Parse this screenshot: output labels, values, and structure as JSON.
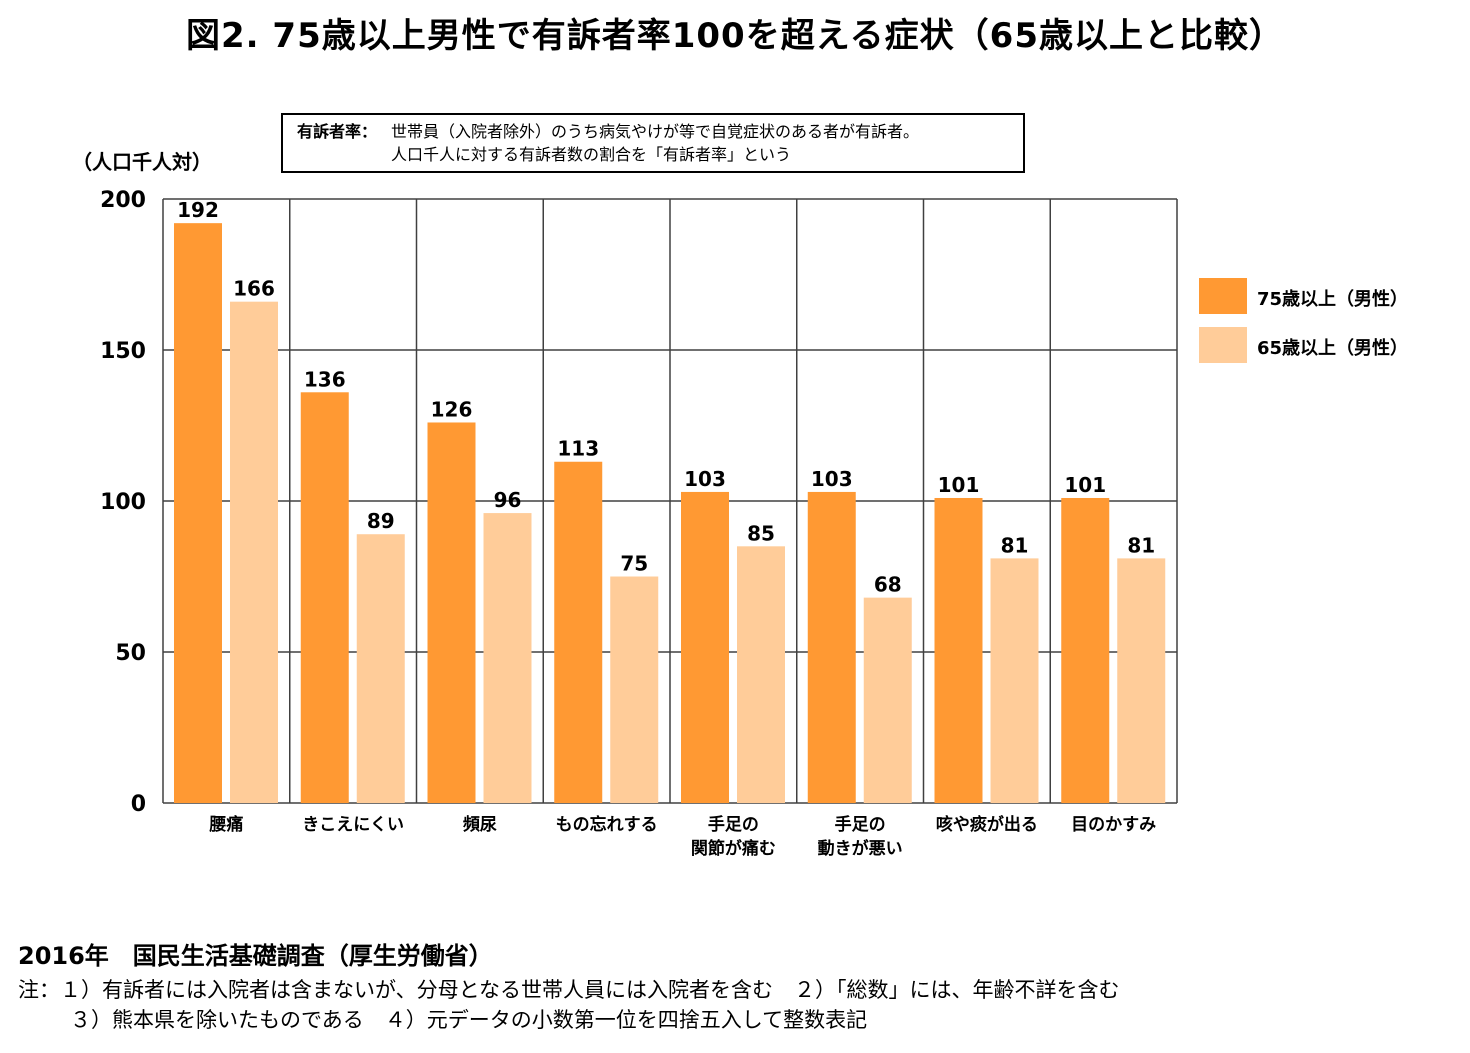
{
  "title": "図2. 75歳以上男性で有訴者率100を超える症状（65歳以上と比較）",
  "definition": {
    "label": "有訴者率：",
    "line1": "世帯員（入院者除外）のうち病気やけが等で自覚症状のある者が有訴者。",
    "line2": "人口千人に対する有訴者数の割合を「有訴者率」という"
  },
  "unit_label": "（人口千人対）",
  "source": "2016年　国民生活基礎調査（厚生労働省）",
  "notes": {
    "line1": "注：１）有訴者には入院者は含まないが、分母となる世帯人員には入院者を含む　２）「総数」には、年齢不詳を含む",
    "line2": "３）熊本県を除いたものである　４）元データの小数第一位を四捨五入して整数表記"
  },
  "colors": {
    "series75": "#FF9933",
    "series65": "#FFCC99",
    "grid": "#404040"
  },
  "chart_data": {
    "type": "bar",
    "categories": [
      [
        "腰痛"
      ],
      [
        "きこえにくい"
      ],
      [
        "頻尿"
      ],
      [
        "もの忘れする"
      ],
      [
        "手足の",
        "関節が痛む"
      ],
      [
        "手足の",
        "動きが悪い"
      ],
      [
        "咳や痰が出る"
      ],
      [
        "目のかすみ"
      ]
    ],
    "series": [
      {
        "name": "75歳以上（男性）",
        "values": [
          192,
          136,
          126,
          113,
          103,
          103,
          101,
          101
        ]
      },
      {
        "name": "65歳以上（男性）",
        "values": [
          166,
          89,
          96,
          75,
          85,
          68,
          81,
          81
        ]
      }
    ],
    "ylim": [
      0,
      200
    ],
    "yticks": [
      0,
      50,
      100,
      150,
      200
    ],
    "grid": true,
    "legend": "right"
  }
}
